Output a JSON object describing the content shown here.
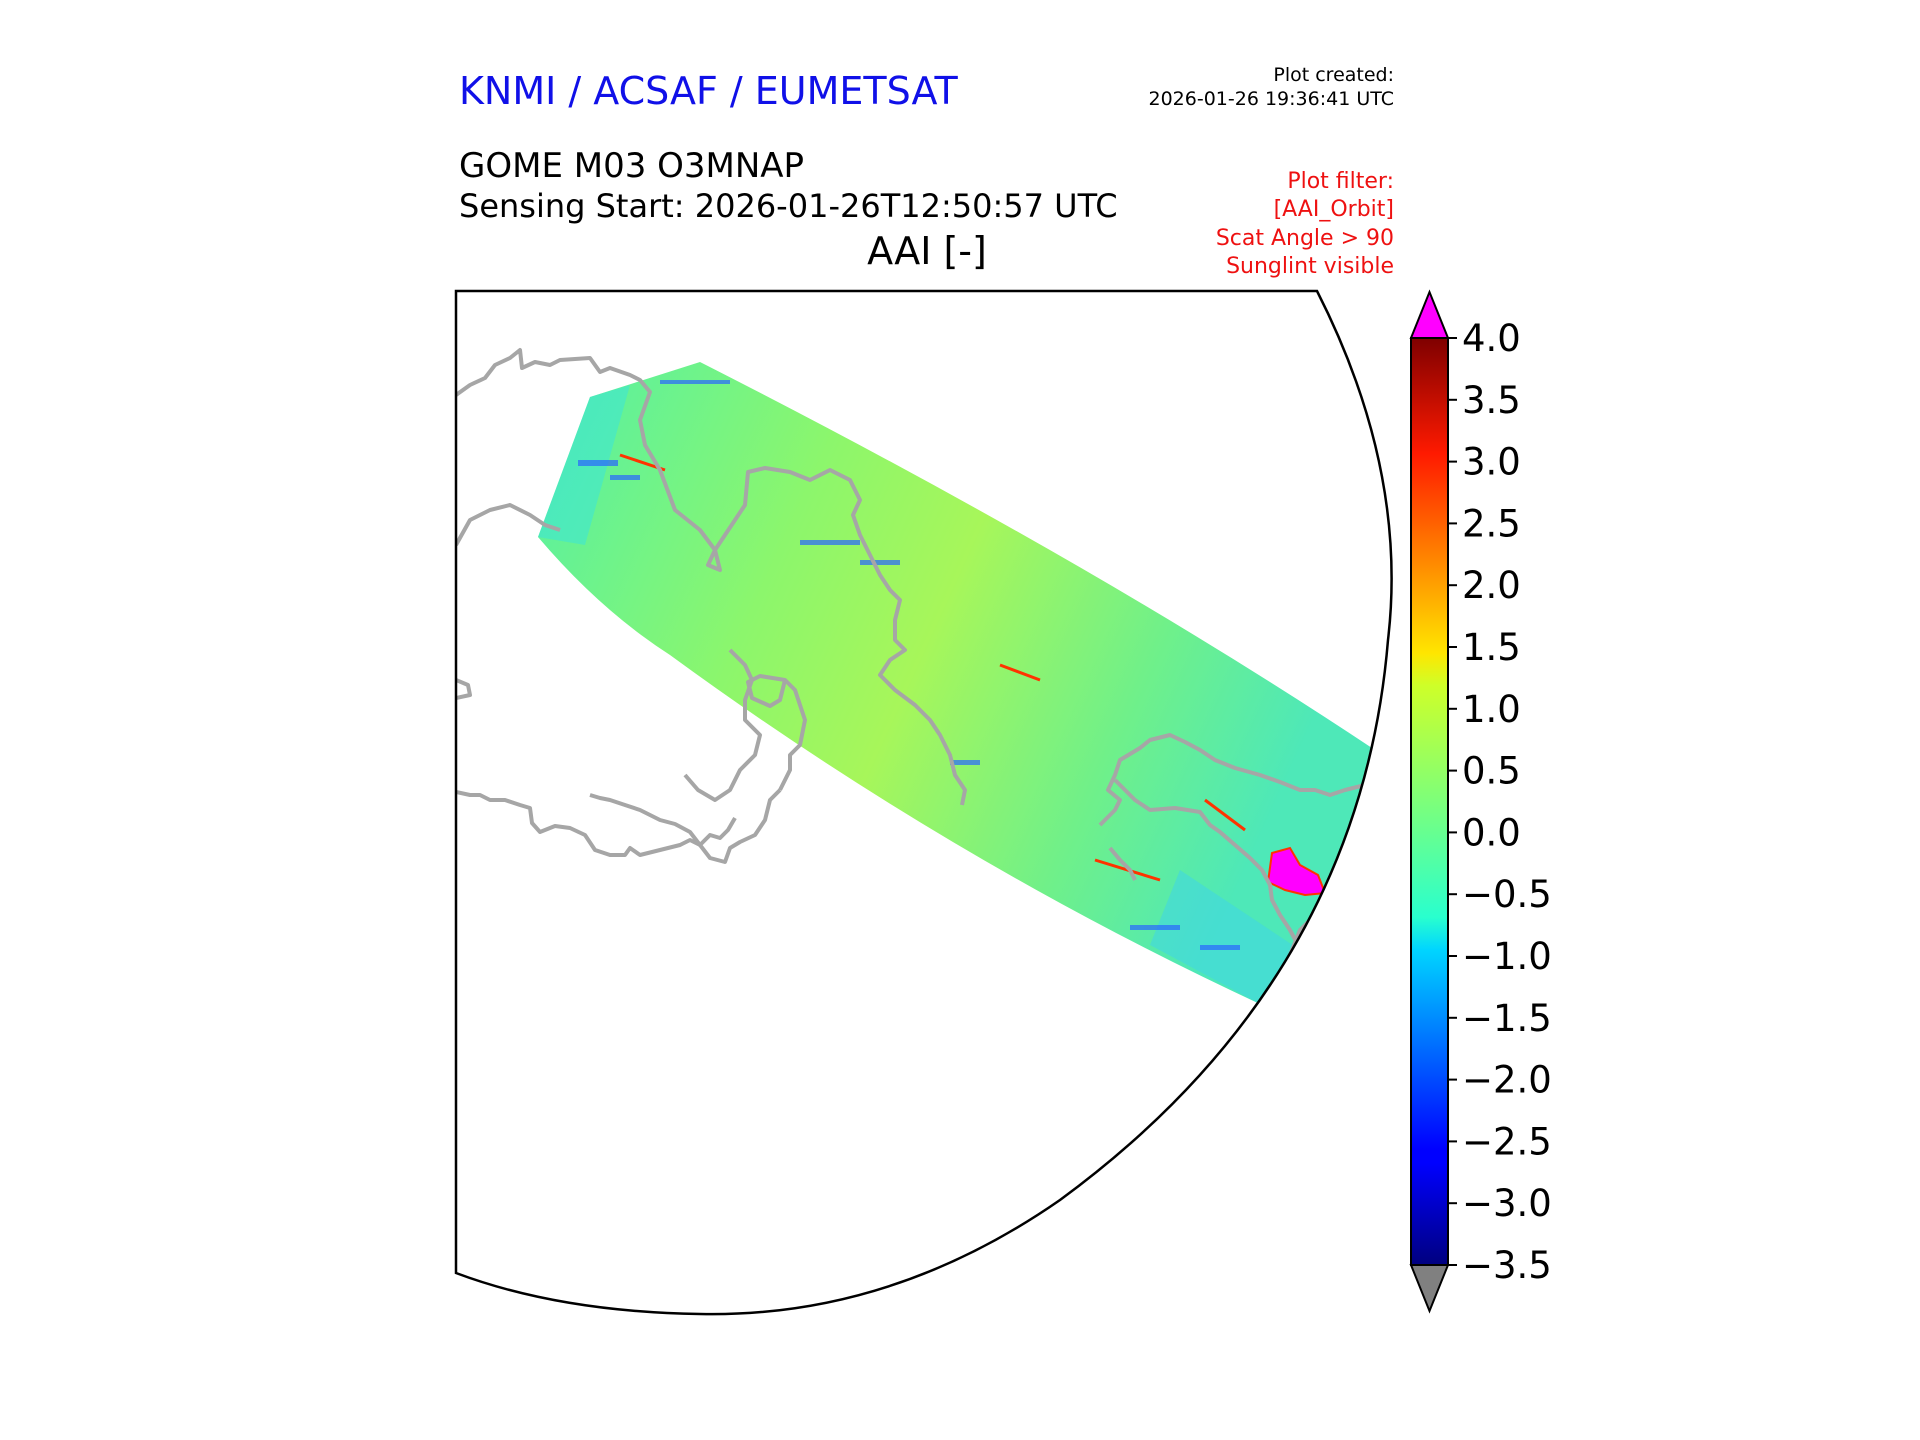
{
  "header": {
    "org": "KNMI / ACSAF / EUMETSAT",
    "org_color": "#1010e8",
    "created_label": "Plot created:",
    "created_time": "2026-01-26 19:36:41 UTC",
    "product": "GOME M03 O3MNAP",
    "sensing": "Sensing Start: 2026-01-26T12:50:57 UTC",
    "variable": "AAI [-]"
  },
  "filters": {
    "color": "#ee1111",
    "lines": [
      "Plot filter:",
      "[AAI_Orbit]",
      "Scat Angle > 90",
      "Sunglint visible"
    ]
  },
  "colorbar": {
    "ticks": [
      "4.0",
      "3.5",
      "3.0",
      "2.5",
      "2.0",
      "1.5",
      "1.0",
      "0.5",
      "0.0",
      "−0.5",
      "−1.0",
      "−1.5",
      "−2.0",
      "−2.5",
      "−3.0",
      "−3.5"
    ],
    "min": -3.5,
    "max": 4.0,
    "colormap": "jet",
    "over_color": "#ff00ff",
    "under_color": "#808080"
  },
  "map": {
    "coastline_color": "#a6a6a6",
    "projection": "polar stereographic",
    "swath_typical_value": 0.0,
    "hotspot_value": "> 4.0",
    "hotspot_color": "#ff00ff"
  }
}
